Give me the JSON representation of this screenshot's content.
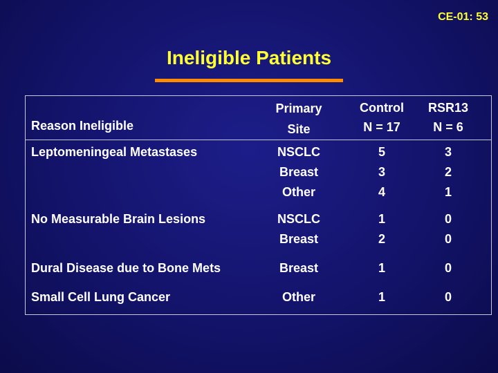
{
  "slide_id": "CE-01: 53",
  "title": "Ineligible Patients",
  "colors": {
    "background": "#13136a",
    "title": "#ffff33",
    "accent_rule": "#ff8c00",
    "text": "#ffffff",
    "table_border": "#c8c8d8"
  },
  "table": {
    "headers": {
      "reason": "Reason Ineligible",
      "primary_line1": "Primary",
      "primary_line2": "Site",
      "control_line1": "Control",
      "control_line2": "N = 17",
      "rsr13_line1": "RSR13",
      "rsr13_line2": "N = 6"
    },
    "rows": [
      {
        "reason": "Leptomeningeal Metastases",
        "sites": [
          "NSCLC",
          "Breast",
          "Other"
        ],
        "control": [
          "5",
          "3",
          "4"
        ],
        "rsr13": [
          "3",
          "2",
          "1"
        ]
      },
      {
        "reason": "No Measurable Brain Lesions",
        "sites": [
          "NSCLC",
          "Breast"
        ],
        "control": [
          "1",
          "2"
        ],
        "rsr13": [
          "0",
          "0"
        ]
      },
      {
        "reason": "Dural Disease due to Bone Mets",
        "sites": [
          "Breast"
        ],
        "control": [
          "1"
        ],
        "rsr13": [
          "0"
        ]
      },
      {
        "reason": "Small Cell Lung Cancer",
        "sites": [
          "Other"
        ],
        "control": [
          "1"
        ],
        "rsr13": [
          "0"
        ]
      }
    ]
  }
}
